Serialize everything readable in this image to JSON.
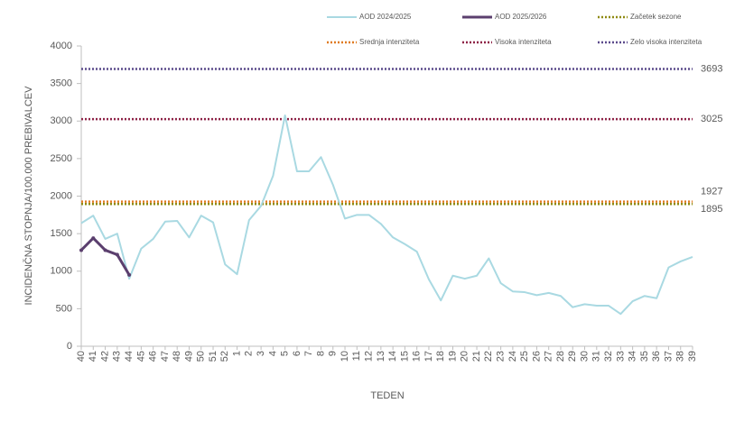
{
  "chart_data": {
    "type": "line",
    "x_label": "TEDEN",
    "y_label": "INCIDENČNA  STOPNJA/100.000  PREBIVALCEV",
    "categories": [
      "40",
      "41",
      "42",
      "43",
      "44",
      "45",
      "46",
      "47",
      "48",
      "49",
      "50",
      "51",
      "52",
      "1",
      "2",
      "3",
      "4",
      "5",
      "6",
      "7",
      "8",
      "9",
      "10",
      "11",
      "12",
      "13",
      "14",
      "15",
      "16",
      "17",
      "18",
      "19",
      "20",
      "21",
      "22",
      "23",
      "24",
      "25",
      "26",
      "27",
      "28",
      "29",
      "30",
      "31",
      "32",
      "33",
      "34",
      "35",
      "36",
      "37",
      "38",
      "39"
    ],
    "series": [
      {
        "name": "AOD 2024/2025",
        "color": "#a9d9e2",
        "width": 2,
        "values": [
          1640,
          1740,
          1430,
          1500,
          900,
          1300,
          1430,
          1660,
          1670,
          1450,
          1740,
          1650,
          1090,
          960,
          1680,
          1870,
          2270,
          3075,
          2330,
          2330,
          2520,
          2150,
          1700,
          1750,
          1750,
          1630,
          1450,
          1360,
          1260,
          890,
          610,
          940,
          900,
          940,
          1170,
          840,
          730,
          720,
          680,
          710,
          670,
          520,
          560,
          540,
          540,
          430,
          600,
          670,
          640,
          1050,
          1130,
          1190
        ]
      },
      {
        "name": "AOD 2025/2026",
        "color": "#5b3f6e",
        "width": 3,
        "values": [
          1280,
          1440,
          1280,
          1220,
          950,
          null,
          null,
          null,
          null,
          null,
          null,
          null,
          null,
          null,
          null,
          null,
          null,
          null,
          null,
          null,
          null,
          null,
          null,
          null,
          null,
          null,
          null,
          null,
          null,
          null,
          null,
          null,
          null,
          null,
          null,
          null,
          null,
          null,
          null,
          null,
          null,
          null,
          null,
          null,
          null,
          null,
          null,
          null,
          null,
          null,
          null,
          null
        ]
      }
    ],
    "thresholds": [
      {
        "name": "Začetek sezone",
        "color": "#8f8a10",
        "value": 1895
      },
      {
        "name": "Srednja intenziteta",
        "color": "#e07b22",
        "value": 1927
      },
      {
        "name": "Visoka intenziteta",
        "color": "#8e2347",
        "value": 3025
      },
      {
        "name": "Zelo visoka intenziteta",
        "color": "#5c4b8c",
        "value": 3693
      }
    ],
    "ylim": [
      0,
      4000
    ],
    "yticks": [
      0,
      500,
      1000,
      1500,
      2000,
      2500,
      3000,
      3500,
      4000
    ],
    "grid": false
  }
}
